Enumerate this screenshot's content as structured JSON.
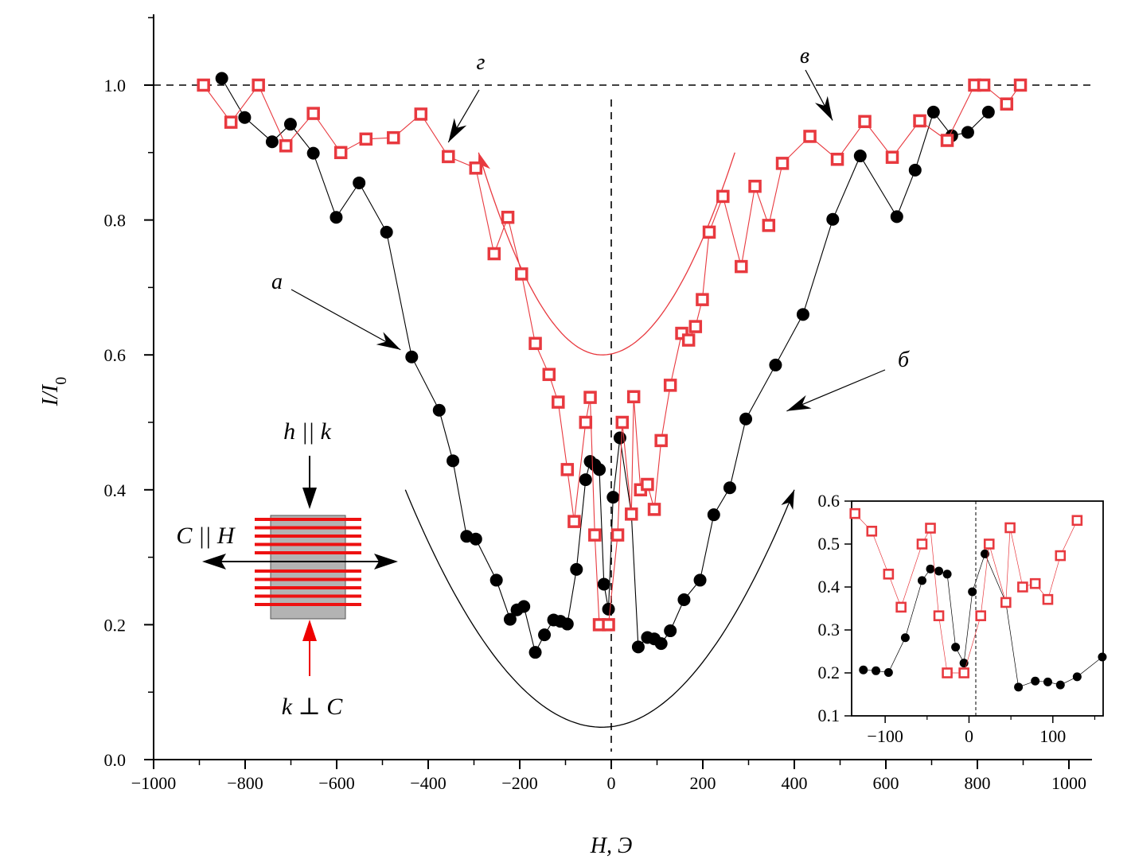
{
  "chart_data": {
    "type": "scatter",
    "xlabel": "H, Э",
    "ylabel": "I/I0",
    "xlim": [
      -1000,
      1000
    ],
    "ylim": [
      0.0,
      1.1
    ],
    "x_ticks": [
      -1000,
      -800,
      -600,
      -400,
      -200,
      0,
      200,
      400,
      600,
      800,
      1000
    ],
    "x_tick_labels": [
      "−1000",
      "−800",
      "−600",
      "−400",
      "−200",
      "0",
      "200",
      "400",
      "600",
      "800",
      "1000"
    ],
    "y_ticks": [
      0.0,
      0.2,
      0.4,
      0.6,
      0.8,
      1.0
    ],
    "y_tick_labels": [
      "0.0",
      "0.2",
      "0.4",
      "0.6",
      "0.8",
      "1.0"
    ],
    "reference_lines": {
      "horizontal_y": 1.0,
      "vertical_x": 0,
      "style": "dashed"
    },
    "colors": {
      "black_series": "#000000",
      "red_series": "#e8393f",
      "sample_gray": "#b3b3b3",
      "sample_stripes": "#ee1111"
    },
    "series": [
      {
        "marker": "filled-circle",
        "color": "#000000",
        "x": [
          -851,
          -801,
          -741,
          -701,
          -651,
          -601,
          -551,
          -491,
          -436,
          -376,
          -346,
          -316,
          -296,
          -251,
          -221,
          -206,
          -191,
          -166,
          -146,
          -126,
          -111,
          -96,
          -76,
          -56,
          -46,
          -36,
          -26,
          -16,
          -6,
          4,
          19,
          44,
          59,
          79,
          94,
          109,
          129,
          159,
          194,
          224,
          259,
          294,
          359,
          419,
          484,
          544,
          624,
          664,
          704,
          744,
          779,
          824
        ],
        "y": [
          1.01,
          0.952,
          0.916,
          0.942,
          0.899,
          0.804,
          0.855,
          0.782,
          0.597,
          0.518,
          0.443,
          0.331,
          0.327,
          0.266,
          0.208,
          0.222,
          0.227,
          0.159,
          0.185,
          0.207,
          0.205,
          0.201,
          0.282,
          0.415,
          0.442,
          0.437,
          0.43,
          0.26,
          0.223,
          0.389,
          0.477,
          0.364,
          0.167,
          0.181,
          0.179,
          0.172,
          0.191,
          0.237,
          0.266,
          0.363,
          0.403,
          0.505,
          0.585,
          0.66,
          0.801,
          0.895,
          0.805,
          0.874,
          0.96,
          0.925,
          0.93,
          0.96
        ]
      },
      {
        "marker": "open-square",
        "color": "#e8393f",
        "x": [
          -891,
          -831,
          -771,
          -711,
          -651,
          -591,
          -536,
          -476,
          -416,
          -356,
          -296,
          -256,
          -226,
          -196,
          -166,
          -136,
          -116,
          -96,
          -81,
          -56,
          -46,
          -36,
          -26,
          -6,
          14,
          24,
          44,
          49,
          64,
          79,
          94,
          109,
          129,
          154,
          169,
          184,
          199,
          214,
          244,
          284,
          314,
          344,
          374,
          434,
          494,
          554,
          614,
          674,
          734,
          794,
          814,
          864,
          894
        ],
        "y": [
          1.0,
          0.945,
          1.0,
          0.91,
          0.958,
          0.9,
          0.92,
          0.922,
          0.957,
          0.894,
          0.877,
          0.75,
          0.804,
          0.72,
          0.617,
          0.571,
          0.53,
          0.43,
          0.353,
          0.5,
          0.537,
          0.333,
          0.2,
          0.2,
          0.333,
          0.5,
          0.364,
          0.538,
          0.4,
          0.408,
          0.371,
          0.473,
          0.555,
          0.632,
          0.622,
          0.642,
          0.682,
          0.782,
          0.835,
          0.731,
          0.85,
          0.792,
          0.884,
          0.924,
          0.89,
          0.946,
          0.893,
          0.947,
          0.918,
          1.0,
          1.0,
          0.972,
          1.0
        ]
      }
    ],
    "annotations": [
      {
        "label": "а",
        "x": -436,
        "y": 0.597
      },
      {
        "label": "б",
        "x": 359,
        "y": 0.505
      },
      {
        "label": "в",
        "x": 494,
        "y": 0.924
      },
      {
        "label": "г",
        "x": -356,
        "y": 0.894
      }
    ],
    "guide_curves": [
      {
        "color": "#000000",
        "vertex_x": -20,
        "vertex_y": 0.048,
        "from_x": -450,
        "to_x": 400,
        "end_y": 0.4,
        "arrow": "end"
      },
      {
        "color": "#e8393f",
        "vertex_x": -20,
        "vertex_y": 0.6,
        "from_x": -290,
        "to_x": 270,
        "end_y": 0.9,
        "arrow": "start"
      }
    ],
    "inset": {
      "xlim": [
        -140,
        160
      ],
      "ylim": [
        0.1,
        0.6
      ],
      "x_ticks": [
        -100,
        0,
        100
      ],
      "x_tick_labels": [
        "−100",
        "0",
        "100"
      ],
      "y_ticks": [
        0.1,
        0.2,
        0.3,
        0.4,
        0.5,
        0.6
      ],
      "y_tick_labels": [
        "0.1",
        "0.2",
        "0.3",
        "0.4",
        "0.5",
        "0.6"
      ]
    },
    "schematic": {
      "label_top": "h || k",
      "label_left": "C || H",
      "label_bottom": "k ⊥ C"
    }
  }
}
